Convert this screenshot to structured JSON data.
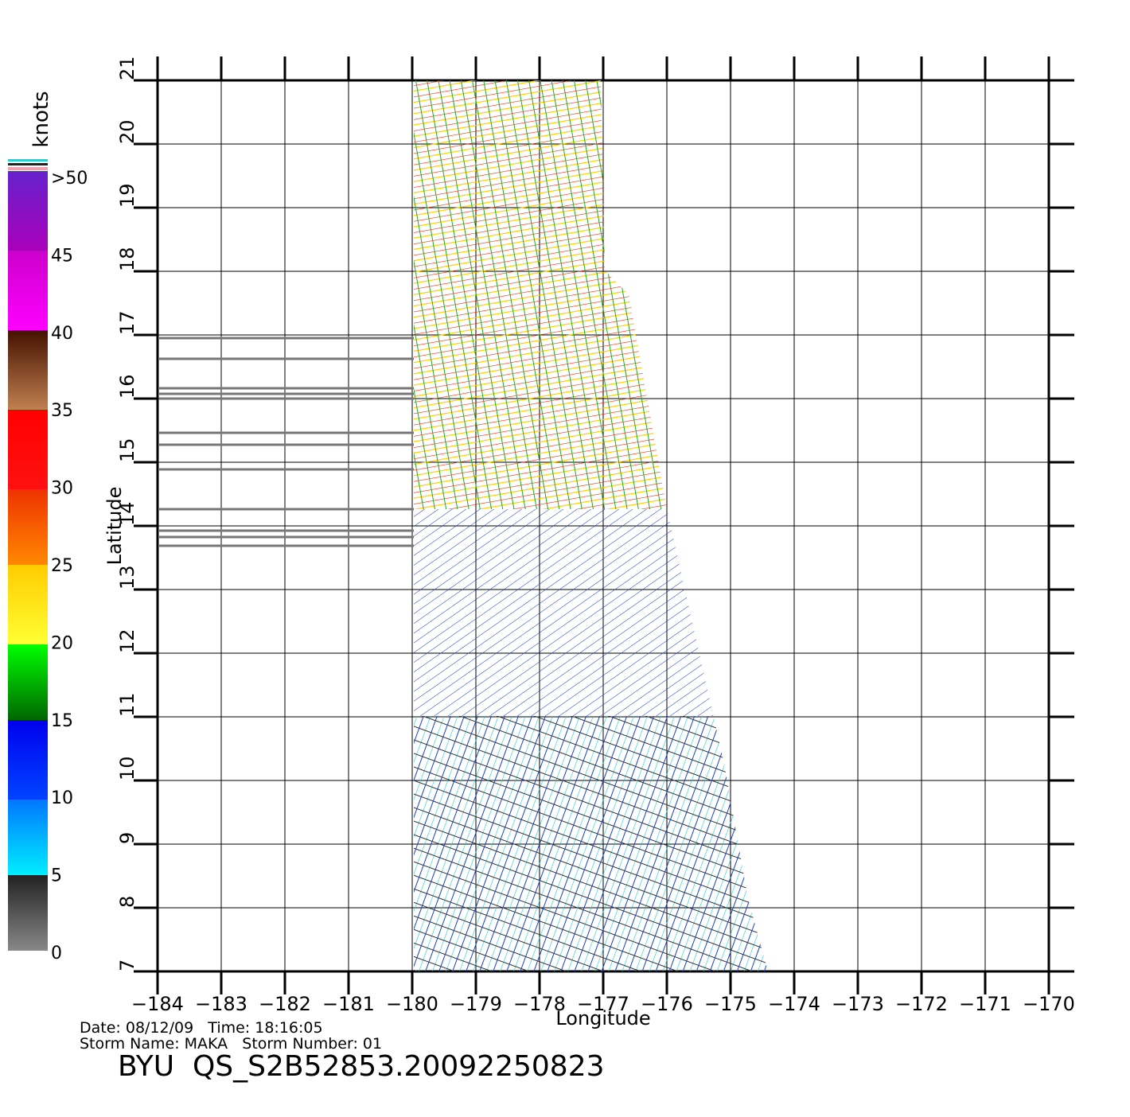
{
  "map": {
    "xaxis": {
      "label": "Longitude",
      "ticks": [
        "−184",
        "−183",
        "−182",
        "−181",
        "−180",
        "−179",
        "−178",
        "−177",
        "−176",
        "−175",
        "−174",
        "−173",
        "−172",
        "−171",
        "−170"
      ]
    },
    "yaxis": {
      "label": "Latitude",
      "ticks": [
        "7",
        "8",
        "9",
        "10",
        "11",
        "12",
        "13",
        "14",
        "15",
        "16",
        "17",
        "18",
        "19",
        "20",
        "21"
      ]
    },
    "colorbar": {
      "unit": "knots",
      "labels": [
        ">50",
        "45",
        "40",
        "35",
        "30",
        "25",
        "20",
        "15",
        "10",
        "5",
        "0"
      ]
    },
    "footer": {
      "date_line": "Date: 08/12/09   Time: 18:16:05",
      "storm_line": "Storm Name: MAKA   Storm Number: 01",
      "title": "BYU  QS_S2B52853.20092250823"
    }
  }
}
